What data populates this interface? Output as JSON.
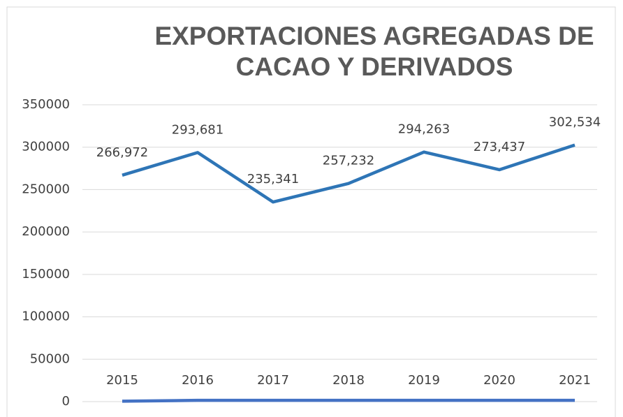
{
  "chart_data": {
    "type": "line",
    "title": "EXPORTACIONES AGREGADAS DE CACAO Y DERIVADOS",
    "categories": [
      "2015",
      "2016",
      "2017",
      "2018",
      "2019",
      "2020",
      "2021"
    ],
    "series": [
      {
        "color": "#2e75b6",
        "values": [
          266972,
          293681,
          235341,
          257232,
          294263,
          273437,
          302534
        ],
        "value_labels": [
          "266,972",
          "293,681",
          "235,341",
          "257,232",
          "294,263",
          "273,437",
          "302,534"
        ]
      },
      {
        "color": "#4472c4",
        "values": [
          500,
          1500,
          1500,
          1500,
          1500,
          1500,
          1500
        ]
      }
    ],
    "ylim": [
      0,
      350000
    ],
    "yticks": [
      0,
      50000,
      100000,
      150000,
      200000,
      250000,
      300000,
      350000
    ],
    "grid": true
  }
}
